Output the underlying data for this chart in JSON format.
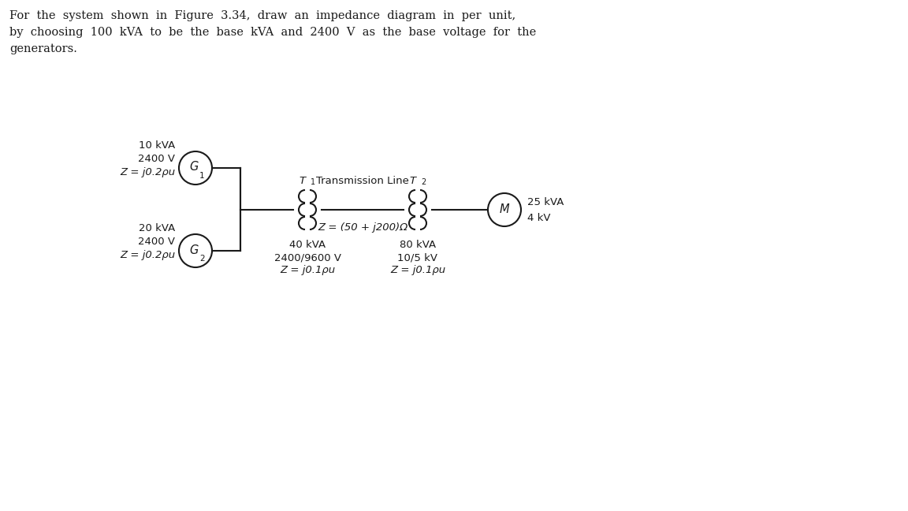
{
  "title_line1": "For  the  system  shown  in  Figure  3.34,  draw  an  impedance  diagram  in  per  unit,",
  "title_line2": "by  choosing  100  kVA  to  be  the  base  kVA  and  2400  V  as  the  base  voltage  for  the",
  "title_line3": "generators.",
  "background_color": "#ffffff",
  "text_color": "#1a1a1a",
  "line_color": "#1a1a1a",
  "g1_label": "G",
  "g1_sub": "1",
  "g2_label": "G",
  "g2_sub": "2",
  "m_label": "M",
  "t1_label": "T",
  "t1_sub": "1",
  "t2_label": "T",
  "t2_sub": "2",
  "g1_info": [
    "10 kVA",
    "2400 V",
    "Z = j0.2ρu"
  ],
  "g2_info": [
    "20 kVA",
    "2400 V",
    "Z = j0.2ρu"
  ],
  "t1_info": [
    "40 kVA",
    "2400/9600 V",
    "Z = j0.1ρu"
  ],
  "t2_info": [
    "80 kVA",
    "10/5 kV",
    "Z = j0.1ρu"
  ],
  "m_info": [
    "25 kVA",
    "4 kV"
  ],
  "line_label": "Transmission Line",
  "line_z": "Z = (50 + j200)Ω",
  "font_size": 9.5,
  "title_font_size": 10.5
}
